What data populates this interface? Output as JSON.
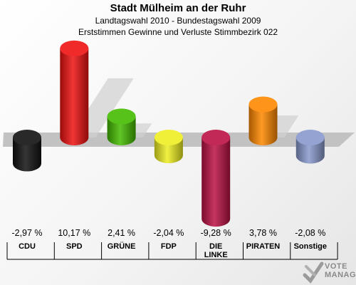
{
  "header": {
    "title": "Stadt Mülheim an der Ruhr",
    "subtitle1": "Landtagswahl 2010 - Bundestagswahl 2009",
    "subtitle2": "Erststimmen Gewinne und Verluste Stimmbezirk 022"
  },
  "chart_data": {
    "type": "bar",
    "title": "Stadt Mülheim an der Ruhr",
    "subtitle": "Landtagswahl 2010 - Bundestagswahl 2009 / Erststimmen Gewinne und Verluste Stimmbezirk 022",
    "categories": [
      "CDU",
      "SPD",
      "GRÜNE",
      "FDP",
      "DIE LINKE",
      "PIRATEN",
      "Sonstige"
    ],
    "category_lines": [
      [
        "CDU"
      ],
      [
        "SPD"
      ],
      [
        "GRÜNE"
      ],
      [
        "FDP"
      ],
      [
        "DIE",
        "LINKE"
      ],
      [
        "PIRATEN"
      ],
      [
        "Sonstige"
      ]
    ],
    "values": [
      -2.97,
      10.17,
      2.41,
      -2.04,
      -9.28,
      3.78,
      -2.08
    ],
    "value_labels": [
      "-2,97 %",
      "10,17 %",
      "2,41 %",
      "-2,04 %",
      "-9,28 %",
      "3,78 %",
      "-2,08 %"
    ],
    "colors": [
      "#111111",
      "#ee1111",
      "#44bb00",
      "#eeee22",
      "#bb1144",
      "#ff8800",
      "#8899cc"
    ],
    "xlabel": "",
    "ylabel": "",
    "grid": false,
    "legend": "none"
  },
  "logo": {
    "line1": "VOTE",
    "line2": "MANAGER"
  }
}
